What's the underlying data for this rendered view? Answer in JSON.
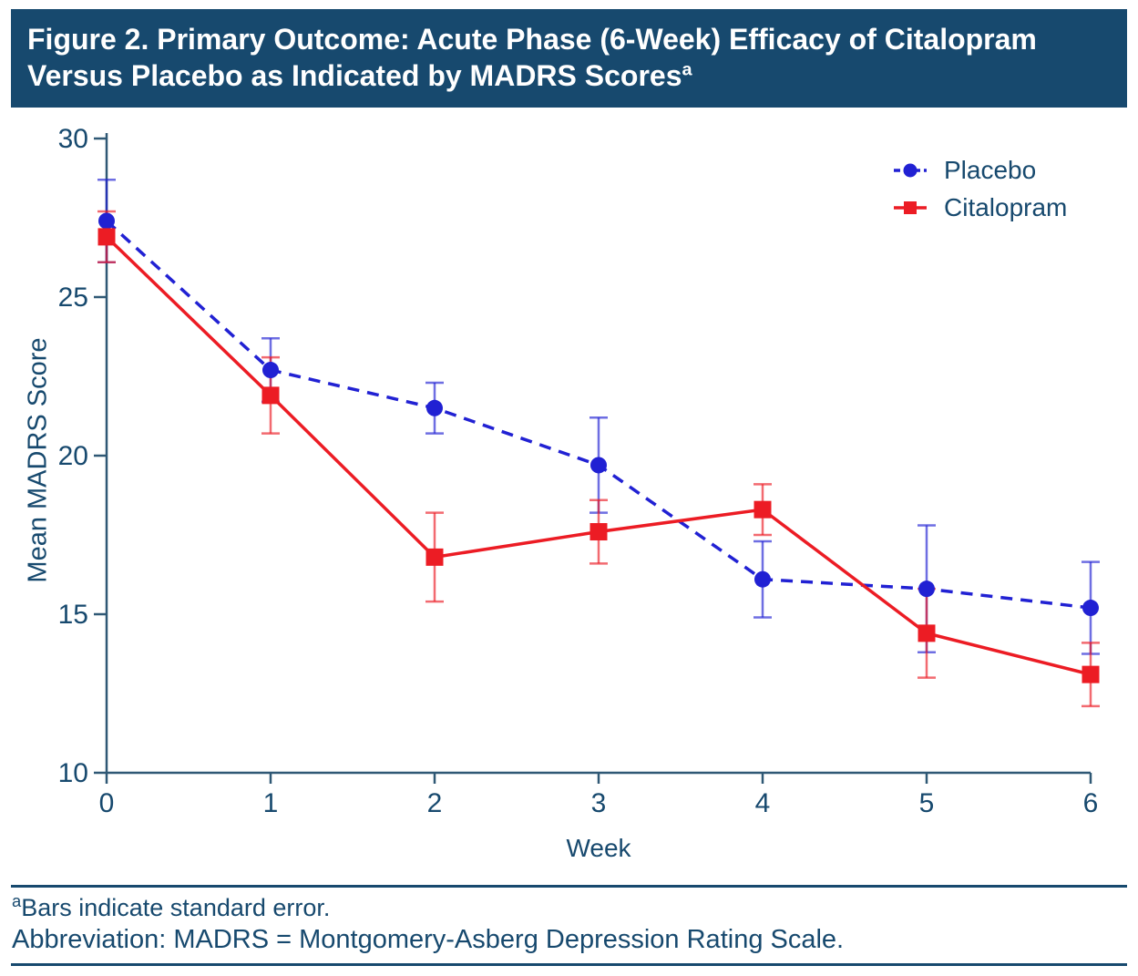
{
  "header": {
    "title_line1": "Figure 2. Primary Outcome: Acute Phase (6-Week) Efficacy of Citalopram",
    "title_line2": "Versus Placebo as Indicated by MADRS Scores",
    "title_superscript": "a"
  },
  "chart_data": {
    "type": "line",
    "x": [
      0,
      1,
      2,
      3,
      4,
      5,
      6
    ],
    "series": [
      {
        "name": "Placebo",
        "color": "#2121d3",
        "marker": "circle",
        "line_style": "dashed",
        "values": [
          27.4,
          22.7,
          21.5,
          19.7,
          16.1,
          15.8,
          15.2
        ],
        "stderr": [
          1.3,
          1.0,
          0.8,
          1.5,
          1.2,
          2.0,
          1.45
        ]
      },
      {
        "name": "Citalopram",
        "color": "#ec1c24",
        "marker": "square",
        "line_style": "solid",
        "values": [
          26.9,
          21.9,
          16.8,
          17.6,
          18.3,
          14.4,
          13.1
        ],
        "stderr": [
          0.8,
          1.2,
          1.4,
          1.0,
          0.8,
          1.4,
          1.0
        ]
      }
    ],
    "title": "",
    "xlabel": "Week",
    "ylabel": "Mean MADRS Score",
    "xticks": [
      "0",
      "1",
      "2",
      "3",
      "4",
      "5",
      "6"
    ],
    "yticks": [
      "30",
      "25",
      "20",
      "15",
      "10"
    ],
    "ytick_values": [
      30,
      25,
      20,
      15,
      10
    ],
    "xlim": [
      0,
      6
    ],
    "ylim": [
      10,
      30
    ],
    "legend_position": "top-right",
    "grid": false,
    "error_bars": "standard error"
  },
  "footer": {
    "footnote_superscript": "a",
    "footnote_text": "Bars indicate standard error.",
    "abbreviation_text": "Abbreviation: MADRS = Montgomery-Asberg Depression Rating Scale."
  },
  "colors": {
    "header_background": "#17496e",
    "navy_text": "#17496e",
    "axis": "#2f5875",
    "placebo_blue": "#2121d3",
    "citalopram_red": "#ec1c24"
  }
}
